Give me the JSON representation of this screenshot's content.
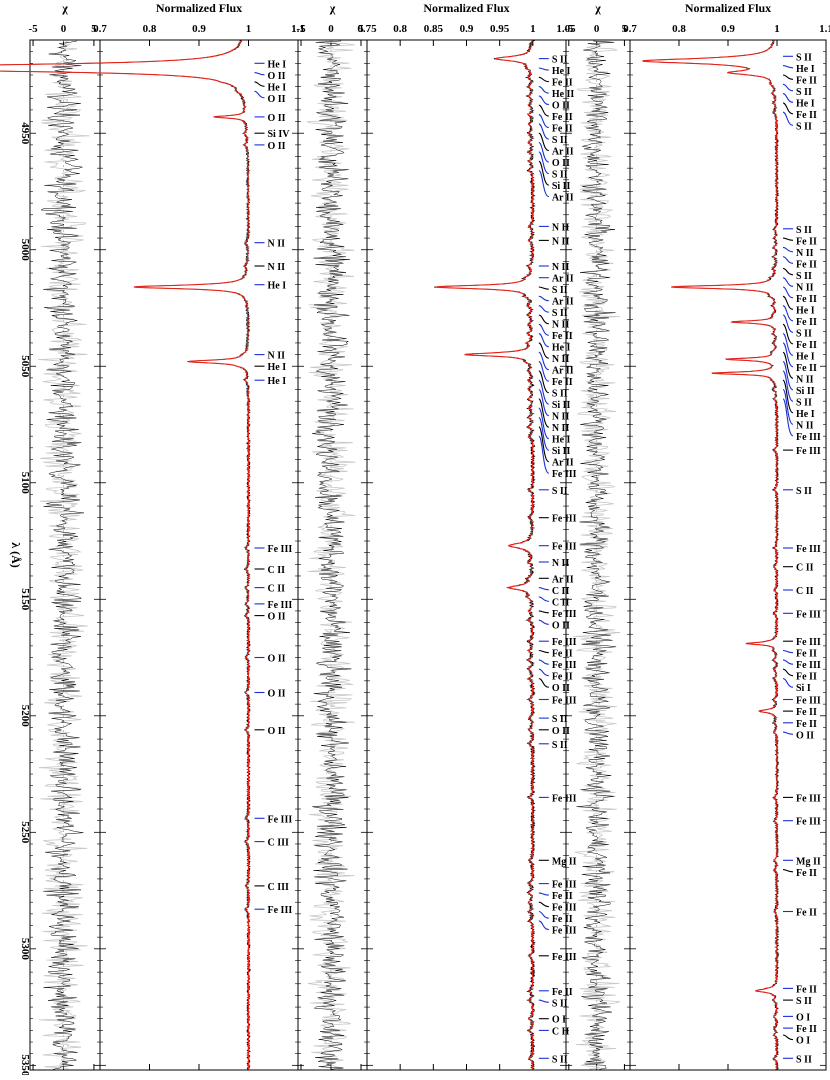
{
  "chart_data": {
    "type": "line",
    "orientation": "rotated-90",
    "x_axis": {
      "label": "λ (Å)",
      "range": [
        4910,
        5352
      ],
      "ticks": [
        4950,
        5000,
        5050,
        5100,
        5150,
        5200,
        5250,
        5300,
        5350
      ]
    },
    "panels": [
      {
        "ylabel": "Normalized Flux",
        "ylim": [
          0.7,
          1.1
        ],
        "ticks": [
          "0.7",
          "0.8",
          "0.9",
          "1",
          "1.1"
        ],
        "absorption": [
          {
            "x": 4922,
            "depth": 0.97,
            "w": 1.4
          },
          {
            "x": 4943,
            "depth": 0.06,
            "w": 0.6
          },
          {
            "x": 5016,
            "depth": 0.23,
            "w": 0.9
          },
          {
            "x": 5048,
            "depth": 0.12,
            "w": 0.8
          }
        ],
        "lines": [
          {
            "x": 4920,
            "label": "He",
            "ion": "I"
          },
          {
            "x": 4924,
            "label": "O",
            "ion": "II"
          },
          {
            "x": 4928,
            "label": "He",
            "ion": "I"
          },
          {
            "x": 4932,
            "label": "O",
            "ion": "II"
          },
          {
            "x": 4943,
            "label": "O",
            "ion": "II"
          },
          {
            "x": 4950,
            "label": "Si",
            "ion": "IV"
          },
          {
            "x": 4955,
            "label": "O",
            "ion": "II"
          },
          {
            "x": 4997,
            "label": "N",
            "ion": "II"
          },
          {
            "x": 5007,
            "label": "N",
            "ion": "II"
          },
          {
            "x": 5015,
            "label": "He",
            "ion": "I"
          },
          {
            "x": 5045,
            "label": "N",
            "ion": "II"
          },
          {
            "x": 5050,
            "label": "He",
            "ion": "I"
          },
          {
            "x": 5056,
            "label": "He",
            "ion": "I"
          },
          {
            "x": 5128,
            "label": "Fe",
            "ion": "III"
          },
          {
            "x": 5137,
            "label": "C",
            "ion": "II"
          },
          {
            "x": 5145,
            "label": "C",
            "ion": "II"
          },
          {
            "x": 5152,
            "label": "Fe",
            "ion": "III"
          },
          {
            "x": 5157,
            "label": "O",
            "ion": "II"
          },
          {
            "x": 5175,
            "label": "O",
            "ion": "II"
          },
          {
            "x": 5190,
            "label": "O",
            "ion": "II"
          },
          {
            "x": 5206,
            "label": "O",
            "ion": "II"
          },
          {
            "x": 5244,
            "label": "Fe",
            "ion": "III"
          },
          {
            "x": 5254,
            "label": "C",
            "ion": "III"
          },
          {
            "x": 5273,
            "label": "C",
            "ion": "III"
          },
          {
            "x": 5283,
            "label": "Fe",
            "ion": "III"
          }
        ]
      },
      {
        "ylabel": "Normalized Flux",
        "ylim": [
          0.75,
          1.05
        ],
        "ticks": [
          "0.75",
          "0.8",
          "0.85",
          "0.9",
          "0.95",
          "1",
          "1.05"
        ],
        "absorption": [
          {
            "x": 4918,
            "depth": 0.05,
            "w": 1.2
          },
          {
            "x": 5016,
            "depth": 0.14,
            "w": 0.9
          },
          {
            "x": 5045,
            "depth": 0.1,
            "w": 0.8
          },
          {
            "x": 5127,
            "depth": 0.03,
            "w": 1.4
          },
          {
            "x": 5145,
            "depth": 0.03,
            "w": 1.2
          }
        ],
        "lines": [
          {
            "x": 4918,
            "label": "S",
            "ion": "II"
          },
          {
            "x": 4922,
            "label": "He",
            "ion": "I"
          },
          {
            "x": 4926,
            "label": "Fe",
            "ion": "II"
          },
          {
            "x": 4930,
            "label": "He",
            "ion": "II"
          },
          {
            "x": 4934,
            "label": "O",
            "ion": "II"
          },
          {
            "x": 4938,
            "label": "Fe",
            "ion": "II"
          },
          {
            "x": 4942,
            "label": "Fe",
            "ion": "II"
          },
          {
            "x": 4946,
            "label": "S",
            "ion": "II"
          },
          {
            "x": 4950,
            "label": "Ar",
            "ion": "II"
          },
          {
            "x": 4954,
            "label": "O",
            "ion": "II"
          },
          {
            "x": 4958,
            "label": "S",
            "ion": "II"
          },
          {
            "x": 4962,
            "label": "Si",
            "ion": "II"
          },
          {
            "x": 4966,
            "label": "Ar",
            "ion": "II"
          },
          {
            "x": 4990,
            "label": "N",
            "ion": "II"
          },
          {
            "x": 4996,
            "label": "N",
            "ion": "II"
          },
          {
            "x": 5007,
            "label": "N",
            "ion": "II"
          },
          {
            "x": 5012,
            "label": "Ar",
            "ion": "II"
          },
          {
            "x": 5016,
            "label": "S",
            "ion": "II"
          },
          {
            "x": 5020,
            "label": "Ar",
            "ion": "II"
          },
          {
            "x": 5024,
            "label": "S",
            "ion": "II"
          },
          {
            "x": 5028,
            "label": "N",
            "ion": "II"
          },
          {
            "x": 5032,
            "label": "Fe",
            "ion": "II"
          },
          {
            "x": 5036,
            "label": "He",
            "ion": "I"
          },
          {
            "x": 5040,
            "label": "N",
            "ion": "II"
          },
          {
            "x": 5044,
            "label": "Ar",
            "ion": "II"
          },
          {
            "x": 5048,
            "label": "Fe",
            "ion": "II"
          },
          {
            "x": 5052,
            "label": "S",
            "ion": "II"
          },
          {
            "x": 5056,
            "label": "Si",
            "ion": "II"
          },
          {
            "x": 5060,
            "label": "N",
            "ion": "II"
          },
          {
            "x": 5064,
            "label": "N",
            "ion": "II"
          },
          {
            "x": 5068,
            "label": "He",
            "ion": "I"
          },
          {
            "x": 5072,
            "label": "Si",
            "ion": "II"
          },
          {
            "x": 5076,
            "label": "Ar",
            "ion": "II"
          },
          {
            "x": 5080,
            "label": "Fe",
            "ion": "III"
          },
          {
            "x": 5103,
            "label": "S",
            "ion": "II"
          },
          {
            "x": 5115,
            "label": "Fe",
            "ion": "III"
          },
          {
            "x": 5127,
            "label": "Fe",
            "ion": "III"
          },
          {
            "x": 5134,
            "label": "N",
            "ion": "II"
          },
          {
            "x": 5141,
            "label": "Ar",
            "ion": "II"
          },
          {
            "x": 5145,
            "label": "C",
            "ion": "II"
          },
          {
            "x": 5149,
            "label": "C",
            "ion": "II"
          },
          {
            "x": 5155,
            "label": "Fe",
            "ion": "III"
          },
          {
            "x": 5159,
            "label": "O",
            "ion": "II"
          },
          {
            "x": 5168,
            "label": "Fe",
            "ion": "III"
          },
          {
            "x": 5172,
            "label": "Fe",
            "ion": "II"
          },
          {
            "x": 5176,
            "label": "Fe",
            "ion": "III"
          },
          {
            "x": 5180,
            "label": "Fe",
            "ion": "II"
          },
          {
            "x": 5184,
            "label": "O",
            "ion": "II"
          },
          {
            "x": 5193,
            "label": "Fe",
            "ion": "III"
          },
          {
            "x": 5201,
            "label": "S",
            "ion": "II"
          },
          {
            "x": 5206,
            "label": "O",
            "ion": "II"
          },
          {
            "x": 5212,
            "label": "S",
            "ion": "II"
          },
          {
            "x": 5235,
            "label": "Fe",
            "ion": "III"
          },
          {
            "x": 5262,
            "label": "Mg",
            "ion": "II"
          },
          {
            "x": 5272,
            "label": "Fe",
            "ion": "III"
          },
          {
            "x": 5276,
            "label": "Fe",
            "ion": "II"
          },
          {
            "x": 5280,
            "label": "Fe",
            "ion": "III"
          },
          {
            "x": 5284,
            "label": "Fe",
            "ion": "II"
          },
          {
            "x": 5288,
            "label": "Fe",
            "ion": "III"
          },
          {
            "x": 5303,
            "label": "Fe",
            "ion": "III"
          },
          {
            "x": 5318,
            "label": "Fe",
            "ion": "II"
          },
          {
            "x": 5322,
            "label": "S",
            "ion": "II"
          },
          {
            "x": 5330,
            "label": "O",
            "ion": "I"
          },
          {
            "x": 5335,
            "label": "C",
            "ion": "II"
          },
          {
            "x": 5347,
            "label": "S",
            "ion": "II"
          }
        ]
      },
      {
        "ylabel": "Normalized Flux",
        "ylim": [
          0.7,
          1.1
        ],
        "ticks": [
          "0.7",
          "0.8",
          "0.9",
          "1",
          "1.1"
        ],
        "absorption": [
          {
            "x": 4919,
            "depth": 0.27,
            "w": 1.3
          },
          {
            "x": 4924,
            "depth": 0.08,
            "w": 1.0
          },
          {
            "x": 5016,
            "depth": 0.21,
            "w": 0.8
          },
          {
            "x": 5031,
            "depth": 0.09,
            "w": 0.6
          },
          {
            "x": 5047,
            "depth": 0.1,
            "w": 0.6
          },
          {
            "x": 5053,
            "depth": 0.13,
            "w": 0.6
          },
          {
            "x": 5169,
            "depth": 0.06,
            "w": 0.6
          },
          {
            "x": 5198,
            "depth": 0.03,
            "w": 0.8
          },
          {
            "x": 5318,
            "depth": 0.04,
            "w": 0.8
          }
        ],
        "lines": [
          {
            "x": 4917,
            "label": "S",
            "ion": "II"
          },
          {
            "x": 4921,
            "label": "He",
            "ion": "I"
          },
          {
            "x": 4925,
            "label": "Fe",
            "ion": "II"
          },
          {
            "x": 4929,
            "label": "S",
            "ion": "II"
          },
          {
            "x": 4933,
            "label": "He",
            "ion": "I"
          },
          {
            "x": 4937,
            "label": "Fe",
            "ion": "II"
          },
          {
            "x": 4941,
            "label": "S",
            "ion": "II"
          },
          {
            "x": 4991,
            "label": "S",
            "ion": "II"
          },
          {
            "x": 4995,
            "label": "Fe",
            "ion": "II"
          },
          {
            "x": 4999,
            "label": "N",
            "ion": "II"
          },
          {
            "x": 5003,
            "label": "Fe",
            "ion": "II"
          },
          {
            "x": 5008,
            "label": "S",
            "ion": "II"
          },
          {
            "x": 5012,
            "label": "N",
            "ion": "II"
          },
          {
            "x": 5016,
            "label": "Fe",
            "ion": "II"
          },
          {
            "x": 5020,
            "label": "He",
            "ion": "I"
          },
          {
            "x": 5024,
            "label": "Fe",
            "ion": "II"
          },
          {
            "x": 5028,
            "label": "S",
            "ion": "II"
          },
          {
            "x": 5032,
            "label": "Fe",
            "ion": "II"
          },
          {
            "x": 5036,
            "label": "He",
            "ion": "I"
          },
          {
            "x": 5040,
            "label": "Fe",
            "ion": "II"
          },
          {
            "x": 5044,
            "label": "N",
            "ion": "II"
          },
          {
            "x": 5048,
            "label": "Si",
            "ion": "II"
          },
          {
            "x": 5052,
            "label": "S",
            "ion": "II"
          },
          {
            "x": 5056,
            "label": "He",
            "ion": "I"
          },
          {
            "x": 5060,
            "label": "N",
            "ion": "II"
          },
          {
            "x": 5064,
            "label": "Fe",
            "ion": "III"
          },
          {
            "x": 5086,
            "label": "Fe",
            "ion": "III"
          },
          {
            "x": 5103,
            "label": "S",
            "ion": "II"
          },
          {
            "x": 5128,
            "label": "Fe",
            "ion": "III"
          },
          {
            "x": 5136,
            "label": "C",
            "ion": "II"
          },
          {
            "x": 5146,
            "label": "C",
            "ion": "II"
          },
          {
            "x": 5156,
            "label": "Fe",
            "ion": "III"
          },
          {
            "x": 5168,
            "label": "Fe",
            "ion": "III"
          },
          {
            "x": 5172,
            "label": "Fe",
            "ion": "II"
          },
          {
            "x": 5176,
            "label": "Fe",
            "ion": "III"
          },
          {
            "x": 5180,
            "label": "Fe",
            "ion": "II"
          },
          {
            "x": 5184,
            "label": "Si",
            "ion": "I"
          },
          {
            "x": 5193,
            "label": "Fe",
            "ion": "III"
          },
          {
            "x": 5198,
            "label": "Fe",
            "ion": "II"
          },
          {
            "x": 5203,
            "label": "Fe",
            "ion": "II"
          },
          {
            "x": 5207,
            "label": "O",
            "ion": "II"
          },
          {
            "x": 5235,
            "label": "Fe",
            "ion": "III"
          },
          {
            "x": 5245,
            "label": "Fe",
            "ion": "III"
          },
          {
            "x": 5262,
            "label": "Mg",
            "ion": "II"
          },
          {
            "x": 5266,
            "label": "Fe",
            "ion": "II"
          },
          {
            "x": 5284,
            "label": "Fe",
            "ion": "II"
          },
          {
            "x": 5317,
            "label": "Fe",
            "ion": "II"
          },
          {
            "x": 5322,
            "label": "S",
            "ion": "II"
          },
          {
            "x": 5329,
            "label": "O",
            "ion": "I"
          },
          {
            "x": 5334,
            "label": "Fe",
            "ion": "II"
          },
          {
            "x": 5337,
            "label": "O",
            "ion": "I"
          },
          {
            "x": 5347,
            "label": "S",
            "ion": "II"
          }
        ]
      }
    ],
    "residual_panels": {
      "ylabel": "χ",
      "ylim": [
        -5.5,
        6
      ],
      "ticks": [
        "-5",
        "0",
        "5"
      ]
    },
    "colors": {
      "observed": "#000000",
      "model": "#e8231b",
      "model_faint": "#f1a5a5",
      "masked": "#c8c8c8",
      "marker_blue": "#1c2fd6",
      "marker_black": "#000000"
    }
  }
}
